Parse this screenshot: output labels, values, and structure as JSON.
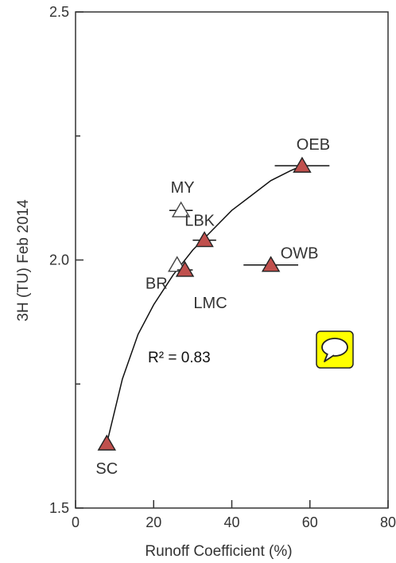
{
  "chart_data": {
    "type": "scatter",
    "xlabel": "Runoff Coefficient (%)",
    "ylabel": "3H (TU) Feb 2014",
    "xlim": [
      0,
      80
    ],
    "ylim": [
      1.5,
      2.5
    ],
    "xticks": [
      "0",
      "20",
      "40",
      "60",
      "80"
    ],
    "yticks": [
      "1.5",
      "2.0",
      "2.5"
    ],
    "y_minor_ticks": [
      1.75,
      2.25
    ],
    "grid": false,
    "annotation": "R² = 0.83",
    "marker_color": "#c0504d",
    "points": [
      {
        "label": "SC",
        "x": 8,
        "y": 1.63,
        "filled": true,
        "xerr": 0
      },
      {
        "label": "BR",
        "x": 26,
        "y": 1.99,
        "filled": false,
        "xerr": 0
      },
      {
        "label": "MY",
        "x": 27,
        "y": 2.1,
        "filled": false,
        "xerr": 3
      },
      {
        "label": "LMC",
        "x": 28,
        "y": 1.98,
        "filled": true,
        "xerr": 2
      },
      {
        "label": "LBK",
        "x": 33,
        "y": 2.04,
        "filled": true,
        "xerr": 3
      },
      {
        "label": "OWB",
        "x": 50,
        "y": 1.99,
        "filled": true,
        "xerr": 7
      },
      {
        "label": "OEB",
        "x": 58,
        "y": 2.19,
        "filled": true,
        "xerr": 7
      }
    ],
    "fit": {
      "type": "log",
      "x": [
        8,
        12,
        16,
        20,
        25,
        30,
        35,
        40,
        45,
        50,
        55,
        58
      ],
      "y": [
        1.63,
        1.76,
        1.85,
        1.91,
        1.97,
        2.02,
        2.06,
        2.1,
        2.13,
        2.16,
        2.18,
        2.19
      ]
    }
  },
  "widget": {
    "icon": "speech-bubble-icon",
    "color": "#ffff00"
  }
}
